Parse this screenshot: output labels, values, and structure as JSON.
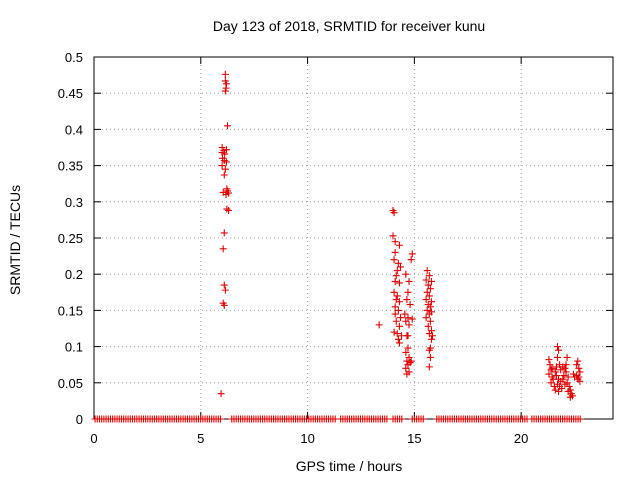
{
  "chart_data": {
    "type": "scatter",
    "title": "Day 123 of 2018, SRMTID for receiver kunu",
    "xlabel": "GPS time / hours",
    "ylabel": "SRMTID / TECUs",
    "xlim": [
      0,
      24.3
    ],
    "ylim": [
      0,
      0.5
    ],
    "x_ticks": [
      0,
      5,
      10,
      15,
      20
    ],
    "x_tick_labels": [
      "0",
      "5",
      "10",
      "15",
      "20"
    ],
    "y_ticks": [
      0,
      0.05,
      0.1,
      0.15,
      0.2,
      0.25,
      0.3,
      0.35,
      0.4,
      0.45,
      0.5
    ],
    "y_tick_labels": [
      "0",
      "0.05",
      "0.1",
      "0.15",
      "0.2",
      "0.25",
      "0.3",
      "0.35",
      "0.4",
      "0.45",
      "0.5"
    ],
    "grid": true,
    "marker": "plus",
    "color": "#e00000",
    "baseline": {
      "y": 0,
      "x_segments": [
        [
          0.05,
          5.95
        ],
        [
          6.45,
          11.35
        ],
        [
          11.55,
          13.75
        ],
        [
          14.0,
          14.45
        ],
        [
          14.9,
          15.5
        ],
        [
          16.05,
          20.35
        ],
        [
          20.5,
          22.85
        ]
      ]
    },
    "series": [
      {
        "name": "SRMTID",
        "points": [
          [
            6.15,
            0.476
          ],
          [
            6.15,
            0.467
          ],
          [
            6.2,
            0.463
          ],
          [
            6.18,
            0.457
          ],
          [
            6.15,
            0.453
          ],
          [
            6.25,
            0.405
          ],
          [
            6.0,
            0.375
          ],
          [
            6.08,
            0.371
          ],
          [
            6.0,
            0.368
          ],
          [
            6.2,
            0.372
          ],
          [
            6.12,
            0.366
          ],
          [
            6.02,
            0.36
          ],
          [
            6.1,
            0.357
          ],
          [
            6.2,
            0.355
          ],
          [
            6.0,
            0.35
          ],
          [
            6.15,
            0.345
          ],
          [
            6.1,
            0.337
          ],
          [
            6.22,
            0.318
          ],
          [
            6.25,
            0.315
          ],
          [
            6.05,
            0.313
          ],
          [
            6.18,
            0.31
          ],
          [
            6.3,
            0.312
          ],
          [
            6.22,
            0.29
          ],
          [
            6.3,
            0.288
          ],
          [
            6.1,
            0.257
          ],
          [
            6.05,
            0.235
          ],
          [
            6.1,
            0.185
          ],
          [
            6.15,
            0.178
          ],
          [
            6.05,
            0.16
          ],
          [
            6.1,
            0.157
          ],
          [
            5.95,
            0.035
          ],
          [
            14.0,
            0.288
          ],
          [
            14.05,
            0.285
          ],
          [
            14.0,
            0.253
          ],
          [
            14.1,
            0.245
          ],
          [
            14.3,
            0.24
          ],
          [
            14.1,
            0.23
          ],
          [
            14.05,
            0.22
          ],
          [
            14.25,
            0.215
          ],
          [
            14.2,
            0.205
          ],
          [
            14.35,
            0.21
          ],
          [
            14.15,
            0.198
          ],
          [
            14.1,
            0.19
          ],
          [
            14.3,
            0.188
          ],
          [
            14.05,
            0.175
          ],
          [
            14.2,
            0.17
          ],
          [
            14.15,
            0.165
          ],
          [
            14.3,
            0.162
          ],
          [
            14.1,
            0.155
          ],
          [
            14.25,
            0.15
          ],
          [
            14.1,
            0.145
          ],
          [
            14.35,
            0.14
          ],
          [
            14.15,
            0.135
          ],
          [
            14.3,
            0.128
          ],
          [
            14.05,
            0.12
          ],
          [
            14.2,
            0.118
          ],
          [
            14.4,
            0.115
          ],
          [
            14.25,
            0.11
          ],
          [
            14.3,
            0.105
          ],
          [
            14.6,
            0.2
          ],
          [
            14.75,
            0.19
          ],
          [
            14.85,
            0.22
          ],
          [
            14.9,
            0.228
          ],
          [
            14.7,
            0.175
          ],
          [
            14.65,
            0.165
          ],
          [
            14.8,
            0.158
          ],
          [
            14.55,
            0.145
          ],
          [
            14.7,
            0.14
          ],
          [
            14.6,
            0.135
          ],
          [
            14.75,
            0.13
          ],
          [
            14.9,
            0.138
          ],
          [
            14.65,
            0.115
          ],
          [
            14.7,
            0.098
          ],
          [
            14.6,
            0.092
          ],
          [
            14.75,
            0.085
          ],
          [
            14.65,
            0.08
          ],
          [
            14.8,
            0.078
          ],
          [
            14.7,
            0.075
          ],
          [
            14.6,
            0.07
          ],
          [
            14.75,
            0.065
          ],
          [
            14.65,
            0.062
          ],
          [
            14.85,
            0.08
          ],
          [
            14.7,
            0.115
          ],
          [
            13.35,
            0.13
          ],
          [
            15.6,
            0.205
          ],
          [
            15.7,
            0.198
          ],
          [
            15.55,
            0.192
          ],
          [
            15.8,
            0.19
          ],
          [
            15.65,
            0.185
          ],
          [
            15.75,
            0.18
          ],
          [
            15.6,
            0.175
          ],
          [
            15.7,
            0.17
          ],
          [
            15.55,
            0.165
          ],
          [
            15.8,
            0.162
          ],
          [
            15.65,
            0.158
          ],
          [
            15.75,
            0.155
          ],
          [
            15.6,
            0.15
          ],
          [
            15.8,
            0.148
          ],
          [
            15.7,
            0.145
          ],
          [
            15.55,
            0.14
          ],
          [
            15.75,
            0.135
          ],
          [
            15.65,
            0.128
          ],
          [
            15.8,
            0.122
          ],
          [
            15.7,
            0.118
          ],
          [
            15.85,
            0.115
          ],
          [
            15.8,
            0.11
          ],
          [
            15.75,
            0.098
          ],
          [
            15.7,
            0.095
          ],
          [
            15.75,
            0.085
          ],
          [
            15.7,
            0.072
          ],
          [
            21.3,
            0.082
          ],
          [
            21.35,
            0.075
          ],
          [
            21.4,
            0.068
          ],
          [
            21.3,
            0.062
          ],
          [
            21.45,
            0.058
          ],
          [
            21.5,
            0.055
          ],
          [
            21.4,
            0.05
          ],
          [
            21.6,
            0.065
          ],
          [
            21.65,
            0.072
          ],
          [
            21.7,
            0.1
          ],
          [
            21.75,
            0.095
          ],
          [
            21.7,
            0.085
          ],
          [
            21.8,
            0.075
          ],
          [
            21.65,
            0.06
          ],
          [
            21.75,
            0.055
          ],
          [
            21.85,
            0.052
          ],
          [
            21.7,
            0.048
          ],
          [
            21.8,
            0.045
          ],
          [
            21.9,
            0.042
          ],
          [
            21.6,
            0.04
          ],
          [
            21.75,
            0.038
          ],
          [
            21.95,
            0.055
          ],
          [
            22.0,
            0.06
          ],
          [
            22.05,
            0.07
          ],
          [
            22.1,
            0.075
          ],
          [
            22.15,
            0.085
          ],
          [
            22.1,
            0.065
          ],
          [
            22.2,
            0.058
          ],
          [
            22.15,
            0.05
          ],
          [
            22.25,
            0.045
          ],
          [
            22.3,
            0.04
          ],
          [
            22.2,
            0.038
          ],
          [
            22.35,
            0.035
          ],
          [
            22.4,
            0.032
          ],
          [
            22.3,
            0.03
          ],
          [
            22.45,
            0.062
          ],
          [
            22.5,
            0.058
          ],
          [
            22.6,
            0.075
          ],
          [
            22.65,
            0.08
          ],
          [
            22.7,
            0.07
          ],
          [
            22.75,
            0.065
          ],
          [
            22.6,
            0.06
          ],
          [
            22.7,
            0.058
          ],
          [
            22.65,
            0.055
          ],
          [
            22.75,
            0.052
          ],
          [
            21.85,
            0.068
          ],
          [
            21.95,
            0.072
          ],
          [
            22.05,
            0.048
          ],
          [
            21.55,
            0.045
          ],
          [
            21.45,
            0.07
          ]
        ]
      }
    ]
  }
}
